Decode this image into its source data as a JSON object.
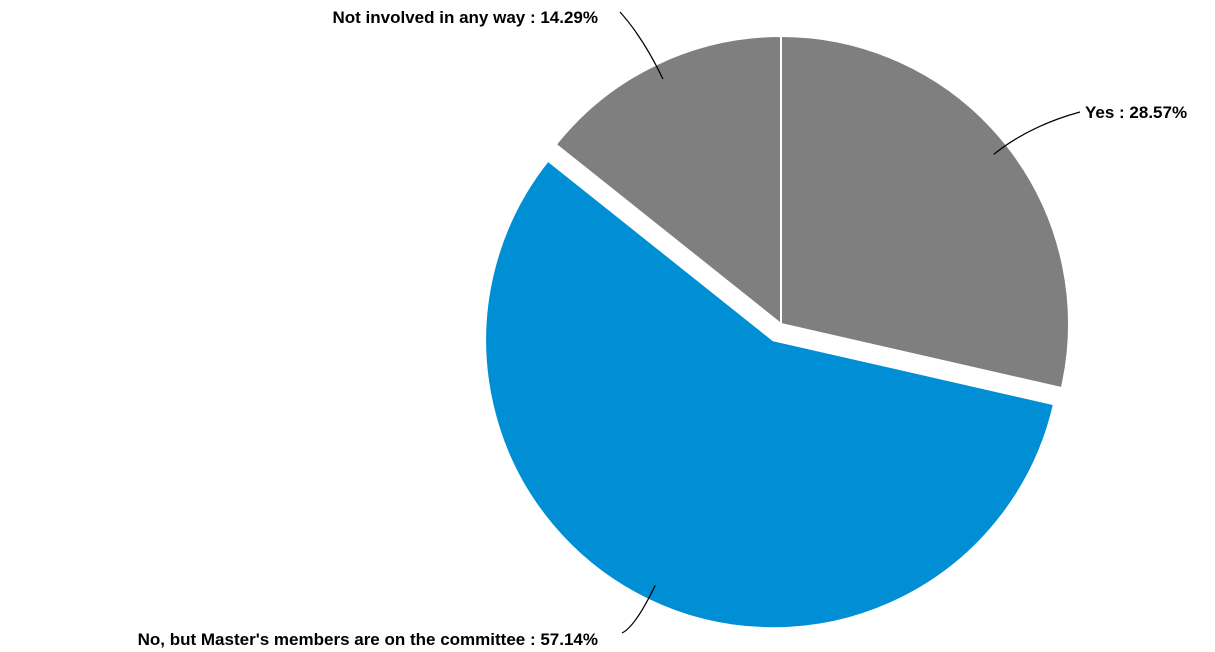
{
  "chart_data": {
    "type": "pie",
    "title": "",
    "slices": [
      {
        "label": "Yes",
        "value": 28.57,
        "display": "Yes : 28.57%",
        "color": "#7f7f7f"
      },
      {
        "label": "No, but Master's members are on the committee",
        "value": 57.14,
        "display": "No, but Master's members are on the committee : 57.14%",
        "color": "#008fd5"
      },
      {
        "label": "Not involved in any way",
        "value": 14.29,
        "display": "Not involved in any way : 14.29%",
        "color": "#7f7f7f"
      }
    ],
    "exploded": [
      "No, but Master's members are on the committee"
    ],
    "slice_border_color": "#ffffff",
    "legend": "none"
  }
}
